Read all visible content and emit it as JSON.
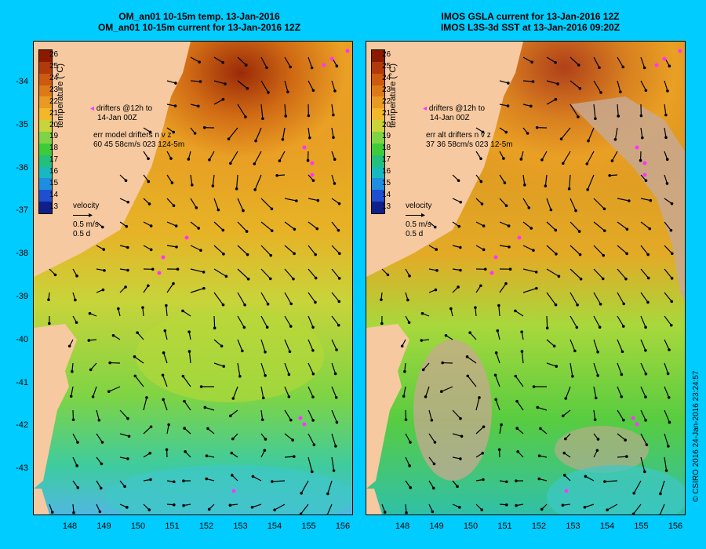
{
  "left_panel": {
    "title_line1": "OM_an01 10-15m temp. 13-Jan-2016",
    "title_line2": "OM_an01 10-15m current for 13-Jan-2016 12Z",
    "drifters_line1": "drifters @12h to",
    "drifters_line2": "14-Jan 00Z",
    "err_line1": "err model drifters n v z",
    "err_line2": "60 45 58cm/s 023 124-5m",
    "velocity_label": "velocity",
    "velocity_scale": "0.5 m/s",
    "velocity_time": "0.5 d"
  },
  "right_panel": {
    "title_line1": "IMOS GSLA current for 13-Jan-2016 12Z",
    "title_line2": "IMOS L3S-3d SST at 13-Jan-2016 09:20Z",
    "drifters_line1": "drifters @12h to",
    "drifters_line2": "14-Jan 00Z",
    "err_line1": "err alt drifters n v z",
    "err_line2": "37 36 58cm/s 023 12-5m",
    "velocity_label": "velocity",
    "velocity_scale": "0.5 m/s",
    "velocity_time": "0.5 d"
  },
  "colorbar": {
    "title": "temperature (°C)",
    "ticks": [
      "26",
      "25",
      "24",
      "23",
      "22",
      "21",
      "20",
      "19",
      "18",
      "17",
      "16",
      "15",
      "14",
      "13"
    ],
    "colors": [
      "#8b1a00",
      "#b03a0a",
      "#cc5a10",
      "#dd7a18",
      "#e99a22",
      "#f2b82a",
      "#c8d43a",
      "#7ed444",
      "#3ecb3a",
      "#22c07a",
      "#18b8c0",
      "#1e8ee0",
      "#1e4fd0",
      "#10208a"
    ]
  },
  "axes": {
    "y_ticks": [
      "-34",
      "-35",
      "-36",
      "-37",
      "-38",
      "-39",
      "-40",
      "-41",
      "-42",
      "-43"
    ],
    "x_ticks": [
      "148",
      "149",
      "150",
      "151",
      "152",
      "153",
      "154",
      "155",
      "156"
    ]
  },
  "copyright": "© CSIRO 2016  24-Jan-2016 23:24:57",
  "colors": {
    "background": "#00ccff",
    "land": "#f6c9a0",
    "drifter": "#ff33ff",
    "no_data": "#c8a890"
  }
}
